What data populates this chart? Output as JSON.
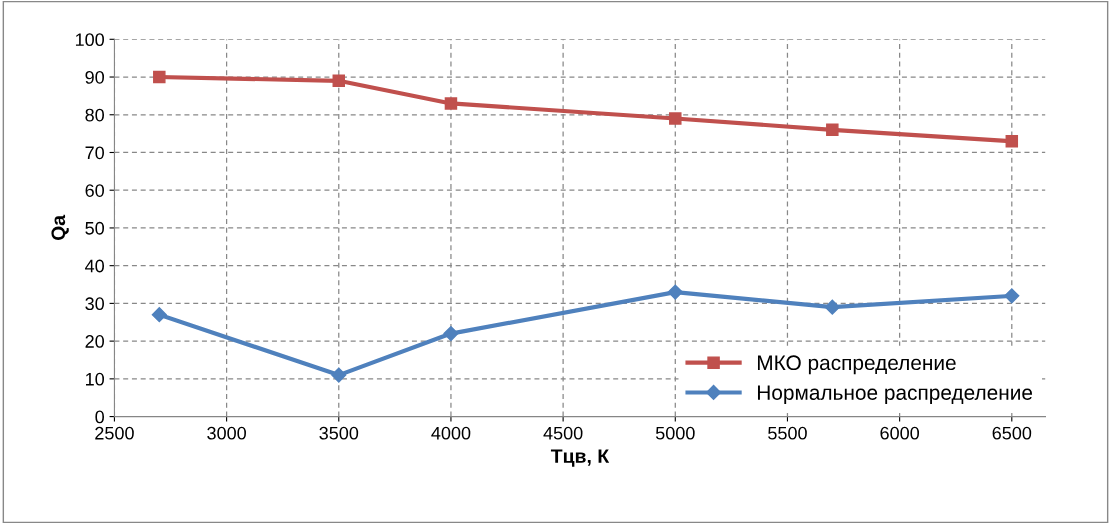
{
  "chart_data": {
    "type": "line",
    "xlabel": "Тцв, К",
    "ylabel": "Qa",
    "x": [
      2700,
      3500,
      4000,
      5000,
      5700,
      6500
    ],
    "series": [
      {
        "name": "МКО распределение",
        "color": "#c0504d",
        "values": [
          90,
          89,
          83,
          79,
          76,
          73
        ],
        "marker": "square"
      },
      {
        "name": "Нормальное распределение",
        "color": "#4f81bd",
        "values": [
          27,
          11,
          22,
          33,
          29,
          32
        ],
        "marker": "diamond"
      }
    ],
    "xlim": [
      2500,
      6650
    ],
    "xticks": [
      2500,
      3000,
      3500,
      4000,
      4500,
      5000,
      5500,
      6000,
      6500
    ],
    "ylim": [
      0,
      100
    ],
    "yticks": [
      0,
      10,
      20,
      30,
      40,
      50,
      60,
      70,
      80,
      90,
      100
    ],
    "grid": true,
    "legend": "bottom right",
    "line_style": "solid"
  }
}
